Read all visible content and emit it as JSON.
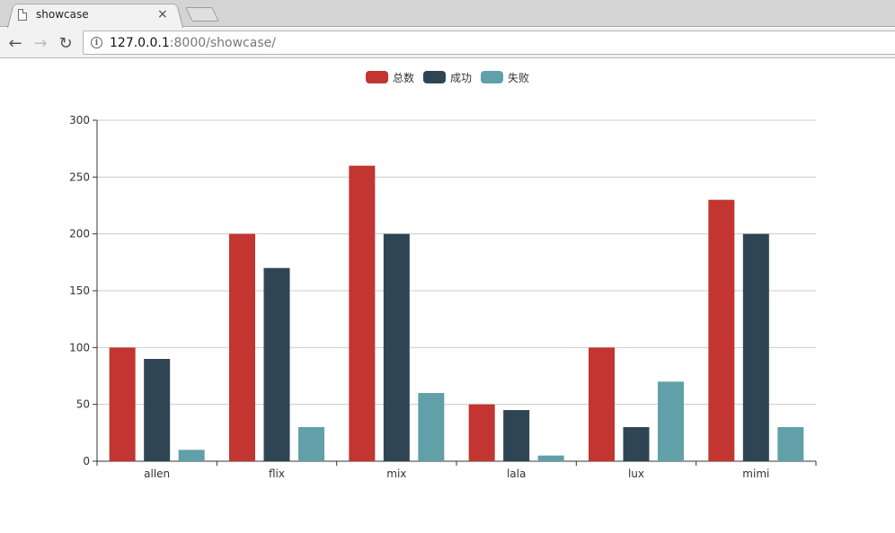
{
  "browser": {
    "tab_title": "showcase",
    "close_glyph": "×",
    "url_host": "127.0.0.1",
    "url_rest": ":8000/showcase/",
    "back_glyph": "←",
    "forward_glyph": "→",
    "reload_glyph": "↻",
    "info_glyph": "i"
  },
  "colors": {
    "total": "#c23531",
    "success": "#2f4554",
    "fail": "#61a0a8",
    "grid": "#cccccc",
    "axis": "#333333"
  },
  "chart_data": {
    "type": "bar",
    "title": "",
    "xlabel": "",
    "ylabel": "",
    "categories": [
      "allen",
      "flix",
      "mix",
      "lala",
      "lux",
      "mimi"
    ],
    "series": [
      {
        "name": "总数",
        "color": "#c23531",
        "values": [
          100,
          200,
          260,
          50,
          100,
          230
        ]
      },
      {
        "name": "成功",
        "color": "#2f4554",
        "values": [
          90,
          170,
          200,
          45,
          30,
          200
        ]
      },
      {
        "name": "失败",
        "color": "#61a0a8",
        "values": [
          10,
          30,
          60,
          5,
          70,
          30
        ]
      }
    ],
    "ylim": [
      0,
      300
    ],
    "yticks": [
      0,
      50,
      100,
      150,
      200,
      250,
      300
    ],
    "grid": true,
    "legend_position": "top-center"
  }
}
